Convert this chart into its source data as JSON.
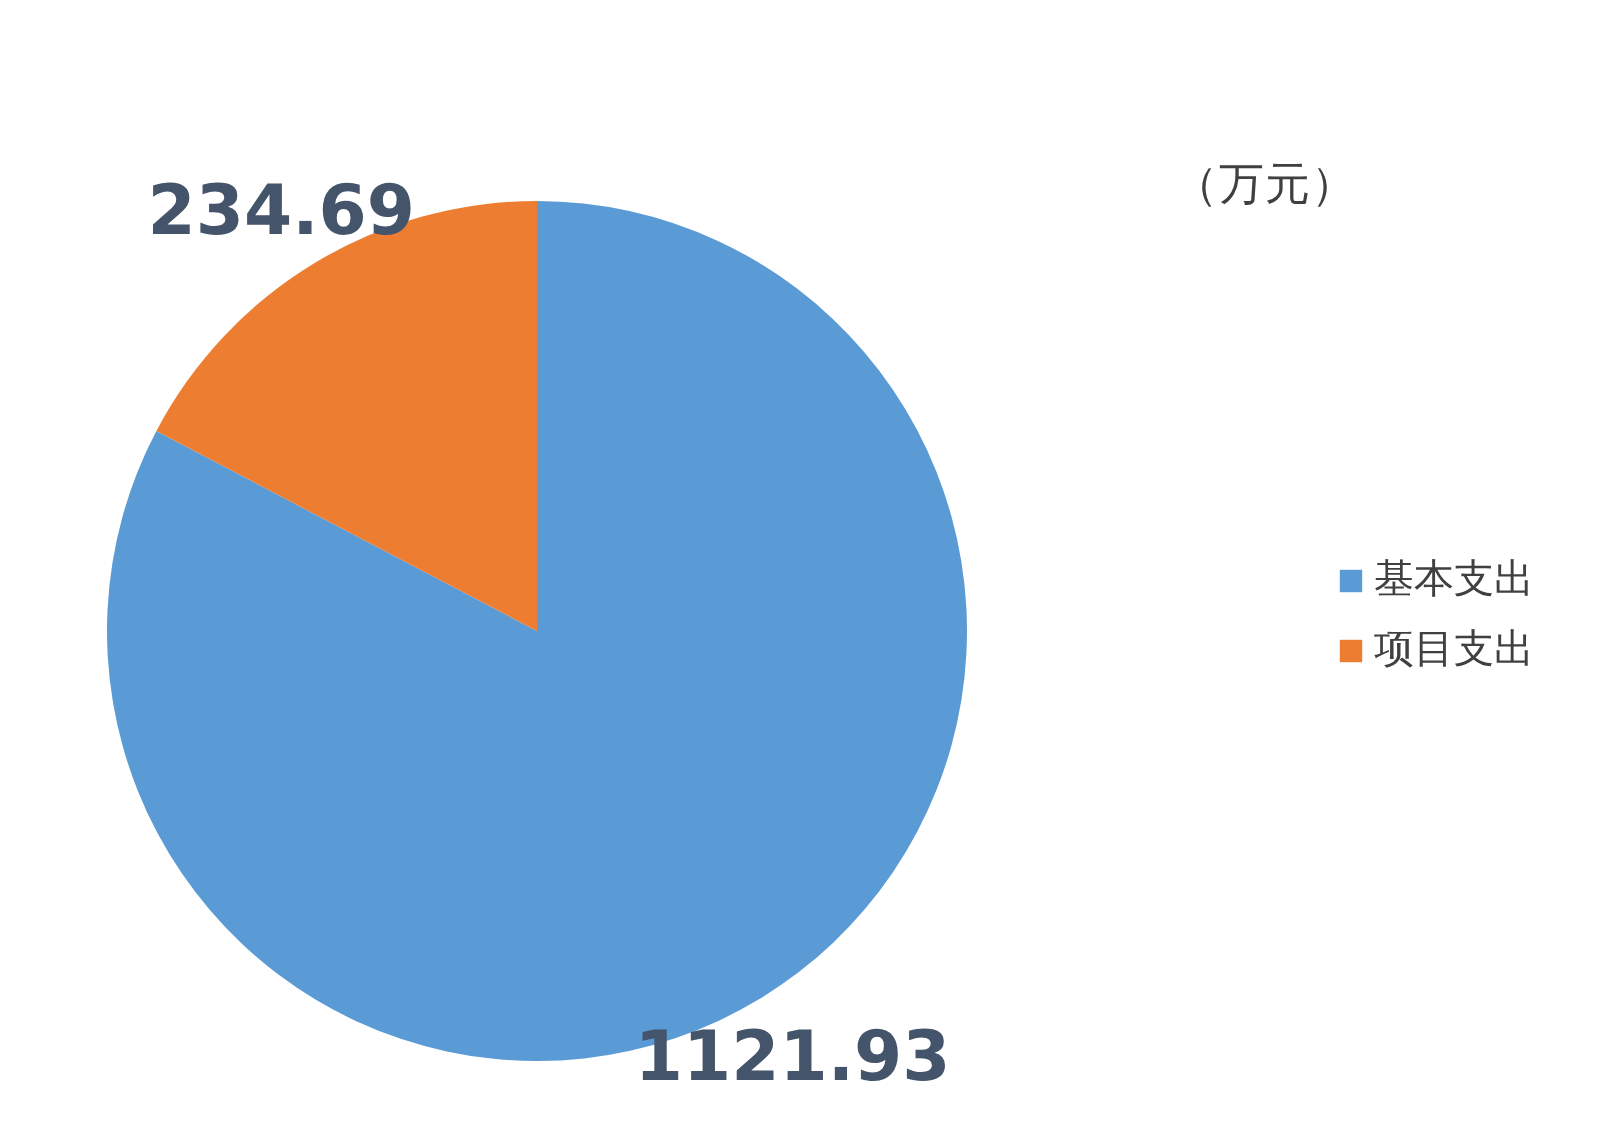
{
  "chart_data": {
    "type": "pie",
    "categories": [
      "基本支出",
      "项目支出"
    ],
    "values": [
      1121.93,
      234.69
    ],
    "colors": [
      "#5b9bd5",
      "#ed7d31"
    ],
    "data_labels": true,
    "legend": "right",
    "annotations": [
      "（万元）"
    ]
  }
}
